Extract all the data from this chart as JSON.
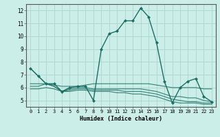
{
  "xlabel": "Humidex (Indice chaleur)",
  "background_color": "#cceee8",
  "grid_color": "#b0d8d0",
  "line_color": "#1a6e64",
  "series_main": [
    7.5,
    6.9,
    6.3,
    6.3,
    5.7,
    6.0,
    6.1,
    6.1,
    5.0,
    9.0,
    10.2,
    10.4,
    11.2,
    11.2,
    12.2,
    11.5,
    9.5,
    6.5,
    4.8,
    6.0,
    6.5,
    6.7,
    5.3,
    4.9
  ],
  "series_upper": [
    7.5,
    6.9,
    6.3,
    6.2,
    6.1,
    6.1,
    6.1,
    6.2,
    6.3,
    6.3,
    6.3,
    6.3,
    6.3,
    6.3,
    6.3,
    6.3,
    6.2,
    6.1,
    6.0,
    6.0,
    6.0,
    6.0,
    5.9,
    5.9
  ],
  "series_mid1": [
    6.3,
    6.3,
    6.3,
    6.1,
    5.7,
    5.9,
    6.0,
    6.0,
    5.9,
    5.9,
    5.9,
    5.9,
    5.9,
    5.9,
    5.9,
    5.8,
    5.7,
    5.5,
    5.3,
    5.3,
    5.2,
    5.2,
    5.0,
    4.9
  ],
  "series_mid2": [
    6.1,
    6.1,
    6.3,
    6.1,
    5.7,
    5.8,
    5.9,
    5.9,
    5.8,
    5.8,
    5.8,
    5.8,
    5.7,
    5.7,
    5.7,
    5.6,
    5.5,
    5.3,
    5.1,
    5.0,
    4.9,
    4.9,
    4.8,
    4.8
  ],
  "series_low": [
    5.9,
    5.9,
    6.0,
    5.9,
    5.7,
    5.7,
    5.8,
    5.8,
    5.7,
    5.7,
    5.7,
    5.6,
    5.6,
    5.5,
    5.5,
    5.4,
    5.3,
    5.1,
    4.9,
    4.8,
    4.8,
    4.8,
    4.7,
    4.7
  ],
  "x_values": [
    0,
    1,
    2,
    3,
    4,
    5,
    6,
    7,
    8,
    9,
    10,
    11,
    12,
    13,
    14,
    15,
    16,
    17,
    18,
    19,
    20,
    21,
    22,
    23
  ],
  "ylim": [
    4.5,
    12.5
  ],
  "yticks": [
    5,
    6,
    7,
    8,
    9,
    10,
    11,
    12
  ],
  "xticks": [
    0,
    1,
    2,
    3,
    4,
    5,
    6,
    7,
    8,
    9,
    10,
    11,
    12,
    13,
    14,
    15,
    16,
    17,
    18,
    19,
    20,
    21,
    22,
    23
  ]
}
